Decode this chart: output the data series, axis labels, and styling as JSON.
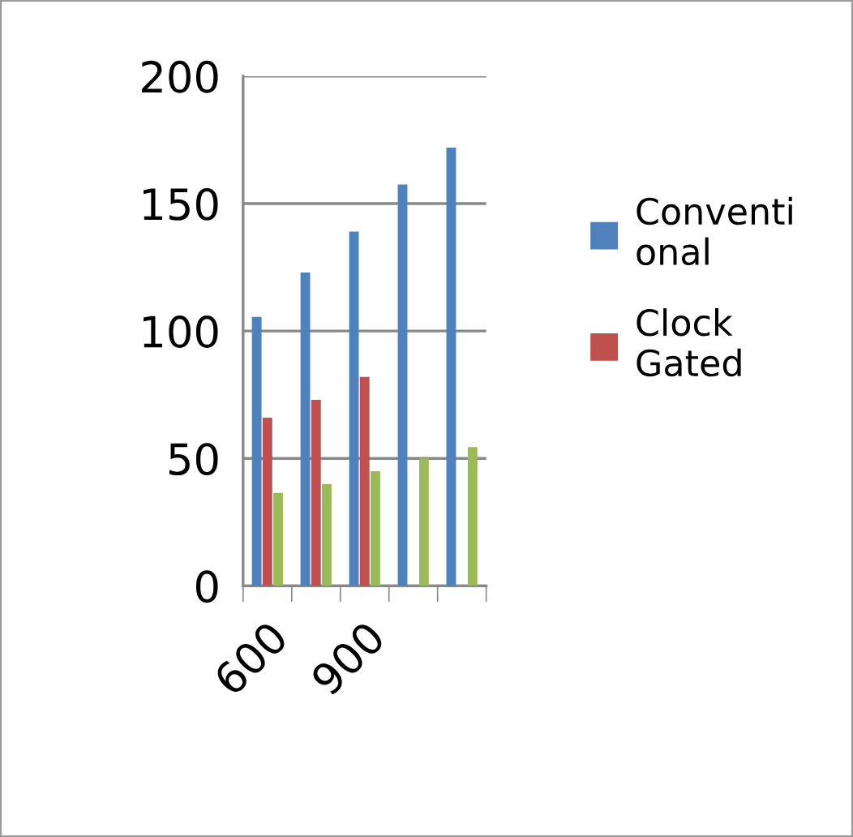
{
  "chart_data": {
    "type": "bar",
    "categories": [
      "600",
      null,
      "900",
      null,
      null
    ],
    "series": [
      {
        "name": "Conventional",
        "color": "#4f81bd",
        "values": [
          105.5,
          123,
          139,
          157.5,
          172
        ]
      },
      {
        "name": "Clock Gated",
        "color": "#c0504d",
        "values": [
          66,
          73,
          82,
          null,
          null
        ]
      },
      {
        "color": "#9bbb59",
        "values": [
          36.5,
          40,
          45,
          50,
          54.5
        ]
      }
    ],
    "ylim": [
      0,
      200
    ],
    "yticks": [
      0,
      50,
      100,
      150,
      200
    ],
    "grid": "y",
    "legend": "right"
  }
}
